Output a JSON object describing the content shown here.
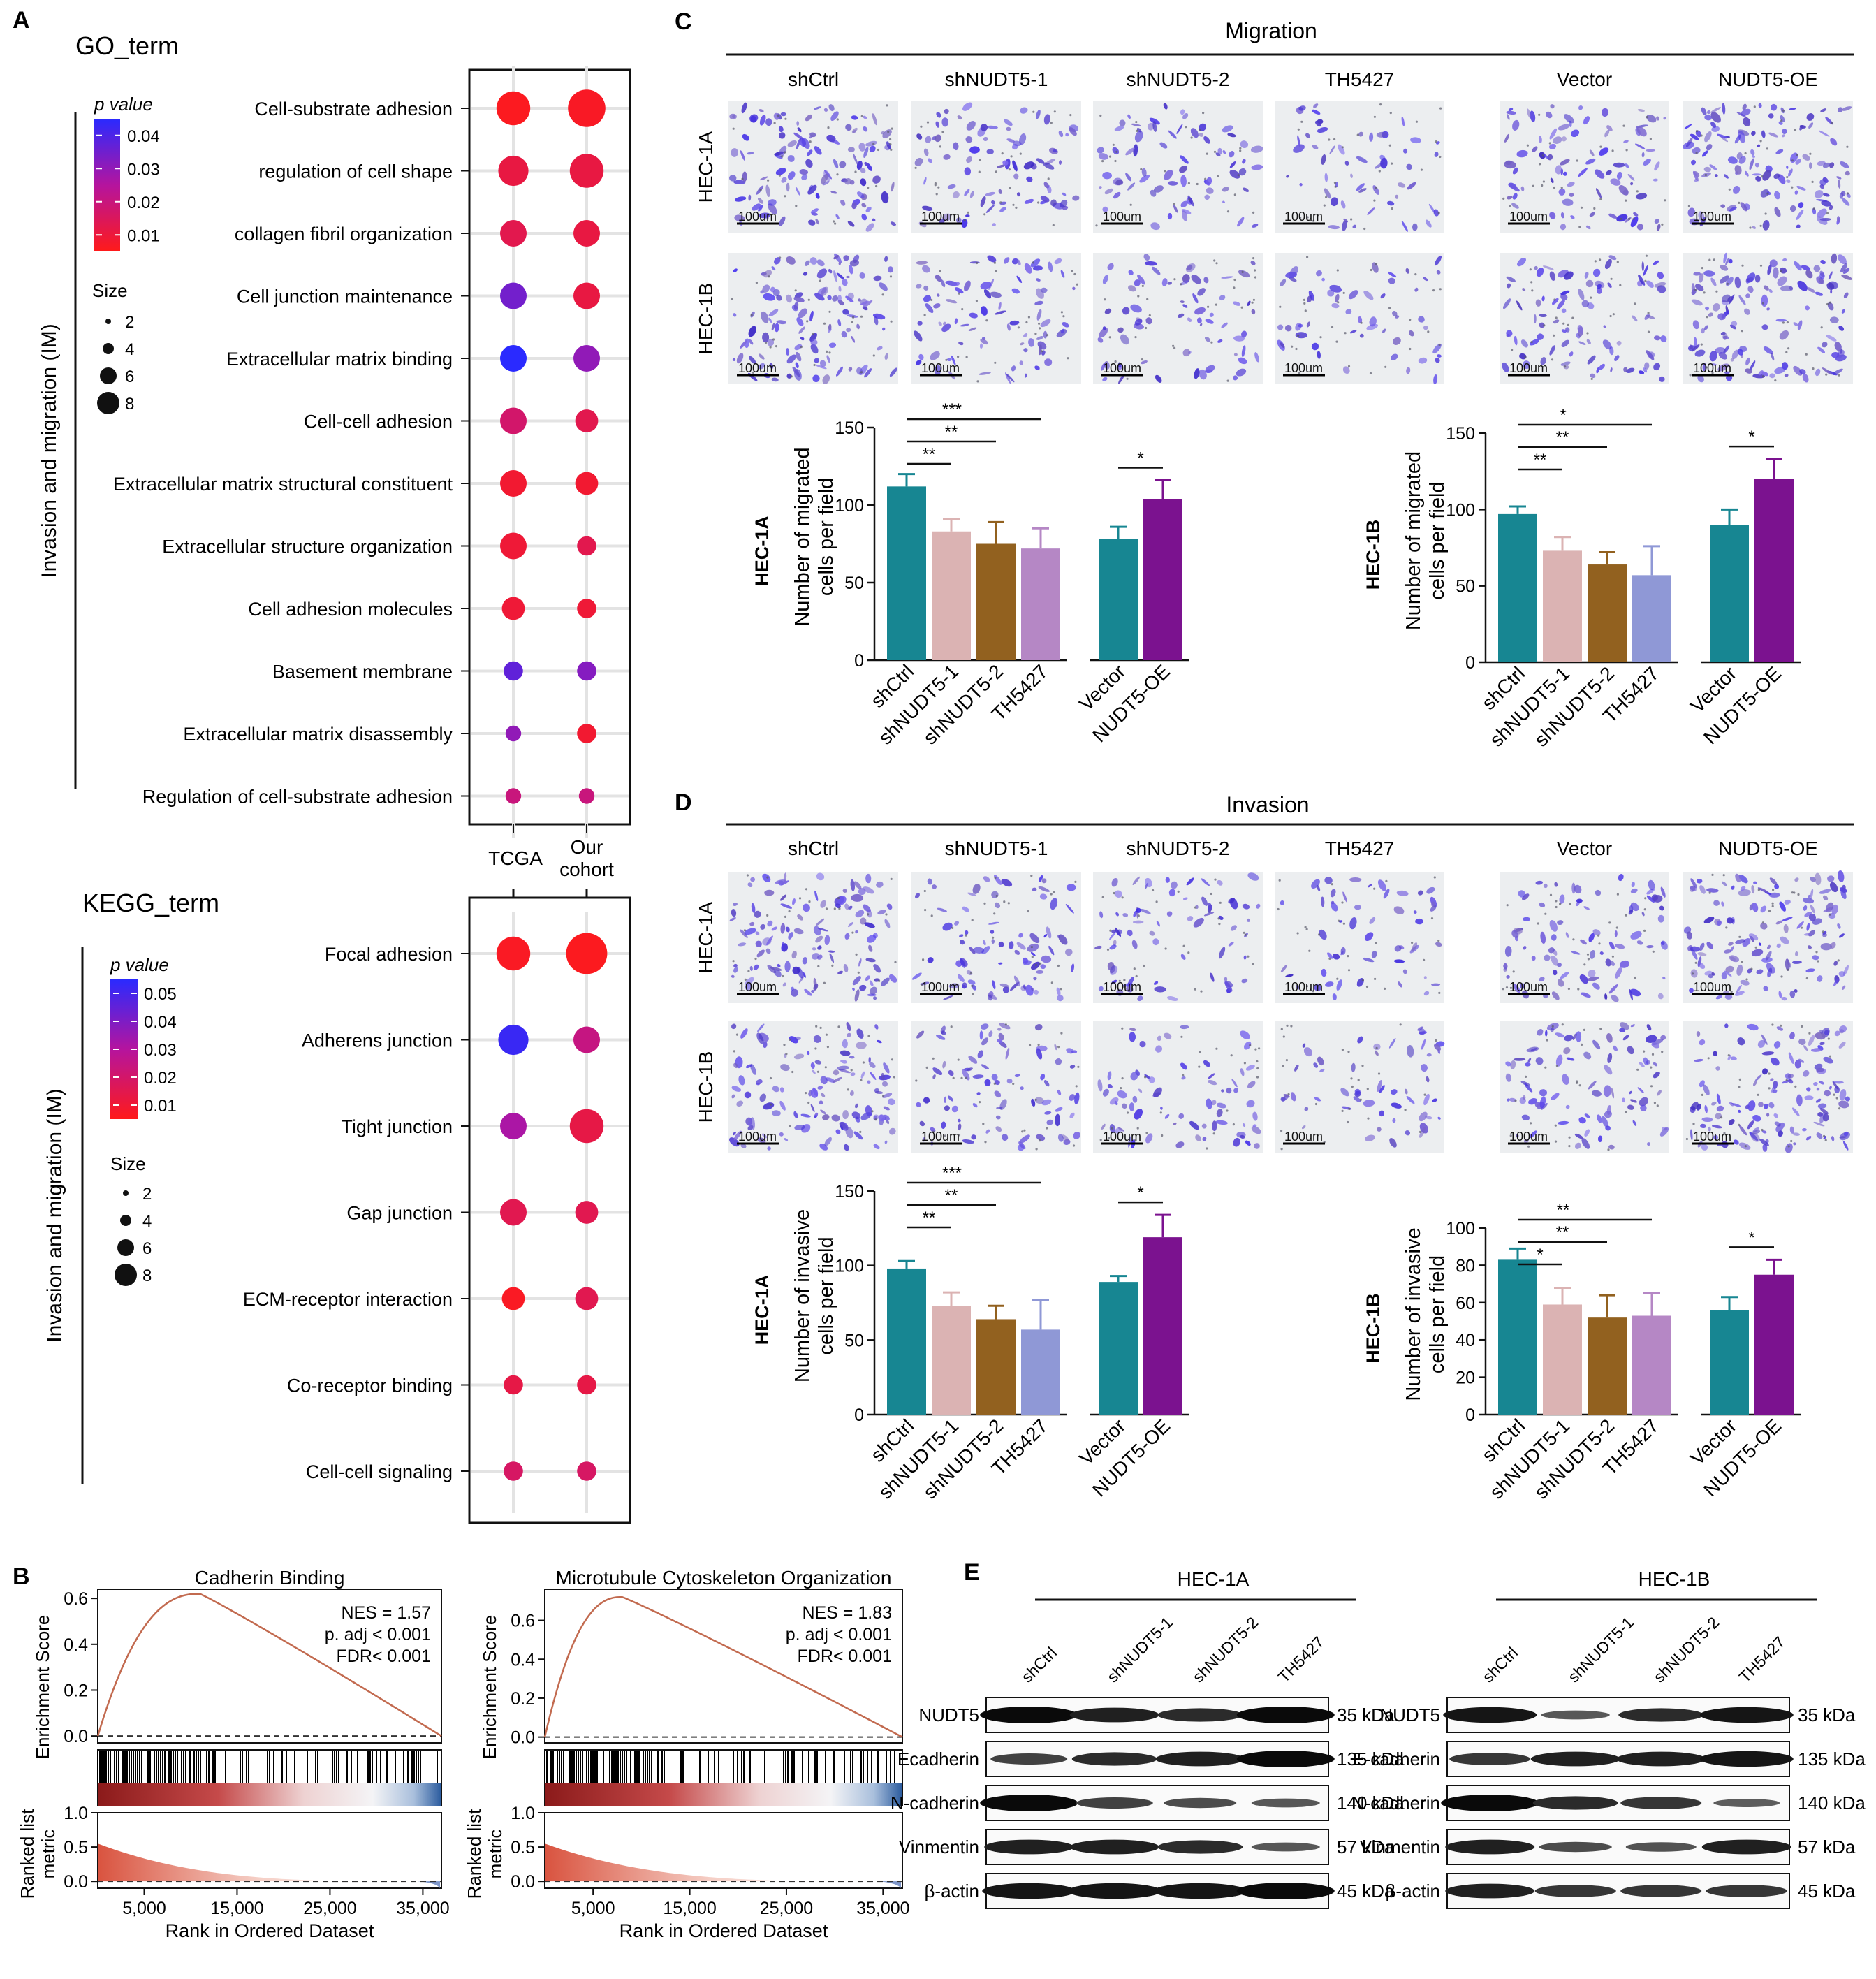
{
  "panels": {
    "A": "A",
    "B": "B",
    "C": "C",
    "D": "D",
    "E": "E"
  },
  "panelA": {
    "go_title": "GO_term",
    "kegg_title": "KEGG_term",
    "side_label": "Invasion and migration (IM)",
    "pvalue_label": "p value",
    "size_label": "Size",
    "go_pvalue_ticks": [
      "0.04",
      "0.03",
      "0.02",
      "0.01"
    ],
    "kegg_pvalue_ticks": [
      "0.05",
      "0.04",
      "0.03",
      "0.02",
      "0.01"
    ],
    "size_ticks": [
      "2",
      "4",
      "6",
      "8"
    ],
    "columns": [
      "TCGA",
      "Our\ncohort"
    ],
    "colors": {
      "low": "#ff1a1a",
      "mid": "#c0139a",
      "high": "#2020ff"
    }
  },
  "chart_data": [
    {
      "type": "scatter",
      "title": "GO_term",
      "subtype": "dot-plot",
      "x": [
        "TCGA",
        "Our cohort"
      ],
      "terms": [
        {
          "name": "Cell-substrate adhesion",
          "tcga": {
            "size": 7,
            "p": 0.002
          },
          "ours": {
            "size": 8,
            "p": 0.003
          }
        },
        {
          "name": "regulation of cell shape",
          "tcga": {
            "size": 6,
            "p": 0.008
          },
          "ours": {
            "size": 7,
            "p": 0.008
          }
        },
        {
          "name": "collagen fibril organization",
          "tcga": {
            "size": 5,
            "p": 0.01
          },
          "ours": {
            "size": 5,
            "p": 0.008
          }
        },
        {
          "name": "Cell junction maintenance",
          "tcga": {
            "size": 5,
            "p": 0.035
          },
          "ours": {
            "size": 5,
            "p": 0.008
          }
        },
        {
          "name": "Extracellular matrix binding",
          "tcga": {
            "size": 5,
            "p": 0.047
          },
          "ours": {
            "size": 5,
            "p": 0.03
          }
        },
        {
          "name": "Cell-cell adhesion",
          "tcga": {
            "size": 5,
            "p": 0.015
          },
          "ours": {
            "size": 4,
            "p": 0.01
          }
        },
        {
          "name": "Extracellular matrix structural constituent",
          "tcga": {
            "size": 5,
            "p": 0.005
          },
          "ours": {
            "size": 4,
            "p": 0.005
          }
        },
        {
          "name": "Extracellular structure organization",
          "tcga": {
            "size": 5,
            "p": 0.006
          },
          "ours": {
            "size": 3,
            "p": 0.01
          }
        },
        {
          "name": "Cell adhesion molecules",
          "tcga": {
            "size": 4,
            "p": 0.006
          },
          "ours": {
            "size": 3,
            "p": 0.006
          }
        },
        {
          "name": "Basement membrane",
          "tcga": {
            "size": 3,
            "p": 0.038
          },
          "ours": {
            "size": 3,
            "p": 0.032
          }
        },
        {
          "name": "Extracellular matrix disassembly",
          "tcga": {
            "size": 2,
            "p": 0.03
          },
          "ours": {
            "size": 3,
            "p": 0.005
          }
        },
        {
          "name": "Regulation of cell-substrate adhesion",
          "tcga": {
            "size": 2,
            "p": 0.018
          },
          "ours": {
            "size": 2,
            "p": 0.018
          }
        }
      ]
    },
    {
      "type": "scatter",
      "title": "KEGG_term",
      "subtype": "dot-plot",
      "x": [
        "TCGA",
        "Our cohort"
      ],
      "terms": [
        {
          "name": "Focal adhesion",
          "tcga": {
            "size": 7,
            "p": 0.003
          },
          "ours": {
            "size": 9,
            "p": 0.002
          }
        },
        {
          "name": "Adherens junction",
          "tcga": {
            "size": 6,
            "p": 0.052
          },
          "ours": {
            "size": 5,
            "p": 0.022
          }
        },
        {
          "name": "Tight junction",
          "tcga": {
            "size": 5,
            "p": 0.03
          },
          "ours": {
            "size": 7,
            "p": 0.01
          }
        },
        {
          "name": "Gap junction",
          "tcga": {
            "size": 5,
            "p": 0.012
          },
          "ours": {
            "size": 4,
            "p": 0.012
          }
        },
        {
          "name": "ECM-receptor interaction",
          "tcga": {
            "size": 4,
            "p": 0.003
          },
          "ours": {
            "size": 4,
            "p": 0.012
          }
        },
        {
          "name": "Co-receptor binding",
          "tcga": {
            "size": 3,
            "p": 0.01
          },
          "ours": {
            "size": 3,
            "p": 0.01
          }
        },
        {
          "name": "Cell-cell signaling",
          "tcga": {
            "size": 3,
            "p": 0.016
          },
          "ours": {
            "size": 3,
            "p": 0.016
          }
        }
      ]
    },
    {
      "type": "line",
      "title": "Cadherin Binding",
      "subtype": "gsea",
      "ylabel": "Enrichment Score",
      "xlabel": "Rank in Ordered Dataset",
      "yticks": [
        "0.6",
        "0.4",
        "0.2",
        "0.0"
      ],
      "ylim": [
        -0.03,
        0.64
      ],
      "xticks": [
        "5,000",
        "15,000",
        "25,000",
        "35,000"
      ],
      "xlim": [
        0,
        37000
      ],
      "peak": {
        "x": 11000,
        "y": 0.62
      },
      "stats": [
        "NES = 1.57",
        "p. adj < 0.001",
        "FDR< 0.001"
      ],
      "metric_label": "Ranked list\nmetric",
      "metric_ticks": [
        "1.0",
        "0.5",
        "0.0"
      ]
    },
    {
      "type": "line",
      "title": "Microtubule Cytoskeleton Organization",
      "subtype": "gsea",
      "ylabel": "Enrichment Score",
      "xlabel": "Rank in Ordered Dataset",
      "yticks": [
        "0.6",
        "0.4",
        "0.2",
        "0.0"
      ],
      "ylim": [
        -0.03,
        0.76
      ],
      "xticks": [
        "5,000",
        "15,000",
        "25,000",
        "35,000"
      ],
      "xlim": [
        0,
        37000
      ],
      "peak": {
        "x": 8000,
        "y": 0.72
      },
      "stats": [
        "NES = 1.83",
        "p. adj < 0.001",
        "FDR< 0.001"
      ],
      "metric_label": "Ranked list\nmetric",
      "metric_ticks": [
        "1.0",
        "0.5",
        "0.0"
      ]
    },
    {
      "type": "bar",
      "title": "Migration HEC-1A",
      "ylabel": "Number of migrated\ncells per field",
      "ylim": [
        0,
        150
      ],
      "yticks": [
        "0",
        "50",
        "100",
        "150"
      ],
      "categories": [
        "shCtrl",
        "shNUDT5-1",
        "shNUDT5-2",
        "TH5427",
        "Vector",
        "NUDT5-OE"
      ],
      "values": [
        112,
        83,
        75,
        72,
        78,
        104
      ],
      "errors": [
        8,
        8,
        14,
        13,
        8,
        12
      ],
      "sig": [
        {
          "from": 0,
          "to": 1,
          "label": "**"
        },
        {
          "from": 0,
          "to": 2,
          "label": "**"
        },
        {
          "from": 0,
          "to": 3,
          "label": "***"
        },
        {
          "from": 4,
          "to": 5,
          "label": "*"
        }
      ]
    },
    {
      "type": "bar",
      "title": "Migration HEC-1B",
      "ylabel": "Number of migrated\ncells per field",
      "ylim": [
        0,
        150
      ],
      "yticks": [
        "0",
        "50",
        "100",
        "150"
      ],
      "categories": [
        "shCtrl",
        "shNUDT5-1",
        "shNUDT5-2",
        "TH5427",
        "Vector",
        "NUDT5-OE"
      ],
      "values": [
        97,
        73,
        64,
        57,
        90,
        120
      ],
      "errors": [
        5,
        9,
        8,
        19,
        10,
        13
      ],
      "sig": [
        {
          "from": 0,
          "to": 1,
          "label": "**"
        },
        {
          "from": 0,
          "to": 2,
          "label": "**"
        },
        {
          "from": 0,
          "to": 3,
          "label": "*"
        },
        {
          "from": 4,
          "to": 5,
          "label": "*"
        }
      ]
    },
    {
      "type": "bar",
      "title": "Invasion HEC-1A",
      "ylabel": "Number of invasive\ncells per field",
      "ylim": [
        0,
        150
      ],
      "yticks": [
        "0",
        "50",
        "100",
        "150"
      ],
      "categories": [
        "shCtrl",
        "shNUDT5-1",
        "shNUDT5-2",
        "TH5427",
        "Vector",
        "NUDT5-OE"
      ],
      "values": [
        98,
        73,
        64,
        57,
        89,
        119
      ],
      "errors": [
        5,
        9,
        9,
        20,
        4,
        15
      ],
      "sig": [
        {
          "from": 0,
          "to": 1,
          "label": "**"
        },
        {
          "from": 0,
          "to": 2,
          "label": "**"
        },
        {
          "from": 0,
          "to": 3,
          "label": "***"
        },
        {
          "from": 4,
          "to": 5,
          "label": "*"
        }
      ]
    },
    {
      "type": "bar",
      "title": "Invasion HEC-1B",
      "ylabel": "Number of invasive\ncells per field",
      "ylim": [
        0,
        100
      ],
      "yticks": [
        "0",
        "20",
        "40",
        "60",
        "80",
        "100"
      ],
      "categories": [
        "shCtrl",
        "shNUDT5-1",
        "shNUDT5-2",
        "TH5427",
        "Vector",
        "NUDT5-OE"
      ],
      "values": [
        83,
        59,
        52,
        53,
        56,
        75
      ],
      "errors": [
        6,
        9,
        12,
        12,
        7,
        8
      ],
      "sig": [
        {
          "from": 0,
          "to": 1,
          "label": "*"
        },
        {
          "from": 0,
          "to": 2,
          "label": "**"
        },
        {
          "from": 0,
          "to": 3,
          "label": "**"
        },
        {
          "from": 4,
          "to": 5,
          "label": "*"
        }
      ]
    }
  ],
  "panelC": {
    "title": "Migration"
  },
  "panelD": {
    "title": "Invasion"
  },
  "micro": {
    "columns": [
      "shCtrl",
      "shNUDT5-1",
      "shNUDT5-2",
      "TH5427",
      "Vector",
      "NUDT5-OE"
    ],
    "rows": [
      "HEC-1A",
      "HEC-1B"
    ],
    "scale_label": "100um"
  },
  "bar_colors": [
    "#178692",
    "#dbb3b3",
    "#92611f",
    "#b587c5",
    "#178692",
    "#7b128f"
  ],
  "bar_colors_alt": [
    "#178692",
    "#dbb3b3",
    "#92611f",
    "#8f98d6",
    "#178692",
    "#7b128f"
  ],
  "bar_row_labels": [
    "HEC-1A",
    "HEC-1B"
  ],
  "panelE": {
    "groups": [
      "HEC-1A",
      "HEC-1B"
    ],
    "lanes": [
      "shCtrl",
      "shNUDT5-1",
      "shNUDT5-2",
      "TH5427"
    ],
    "proteins_left": [
      "NUDT5",
      "Ecadherin",
      "N-cadherin",
      "Vinmentin",
      "β-actin"
    ],
    "proteins_right": [
      "NUDT5",
      "E-cadherin",
      "N-cadherin",
      "Vinmentin",
      "β-actin"
    ],
    "kda": [
      "35 kDa",
      "135 kDa",
      "140 kDa",
      "57 kDa",
      "45 kDa"
    ],
    "band_intensity_left": [
      [
        1.0,
        0.8,
        0.7,
        1.0
      ],
      [
        0.5,
        0.7,
        0.8,
        1.0
      ],
      [
        1.0,
        0.5,
        0.4,
        0.3
      ],
      [
        0.8,
        0.8,
        0.7,
        0.3
      ],
      [
        0.9,
        0.9,
        0.9,
        1.0
      ]
    ],
    "band_intensity_right": [
      [
        0.9,
        0.3,
        0.7,
        0.9
      ],
      [
        0.6,
        0.8,
        0.8,
        0.9
      ],
      [
        1.0,
        0.7,
        0.6,
        0.25
      ],
      [
        0.8,
        0.4,
        0.35,
        0.8
      ],
      [
        0.8,
        0.6,
        0.6,
        0.6
      ]
    ]
  }
}
